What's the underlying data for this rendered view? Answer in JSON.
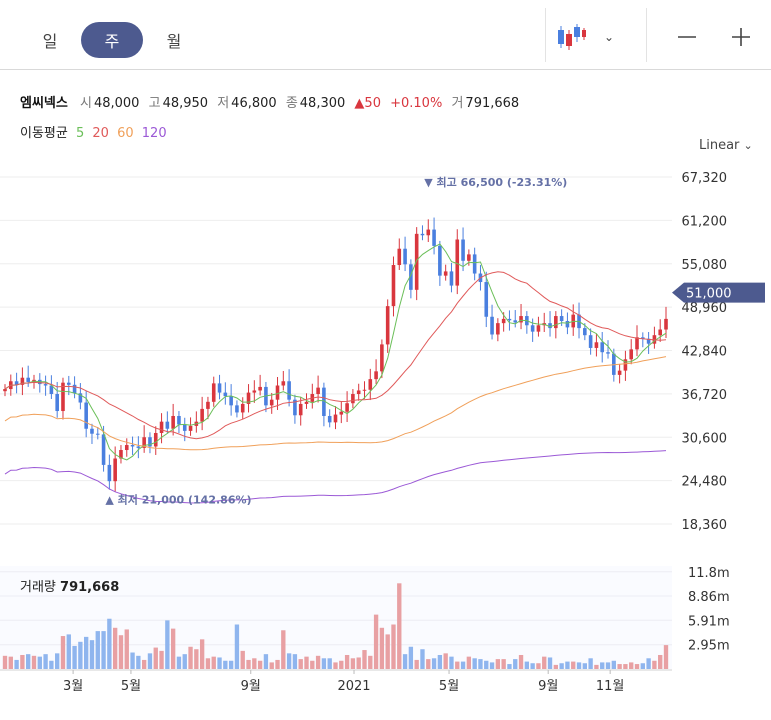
{
  "period_tabs": [
    "일",
    "주",
    "월"
  ],
  "active_period": "주",
  "icons": {
    "chart_type": "candlestick-icon",
    "chart_type_caret": "chevron-down-icon",
    "zoom_out": "minus-icon",
    "zoom_in": "plus-icon"
  },
  "quote": {
    "name": "엠씨넥스",
    "open_label": "시",
    "open": "48,000",
    "high_label": "고",
    "high": "48,950",
    "low_label": "저",
    "low": "46,800",
    "close_label": "종",
    "close": "48,300",
    "change_arrow": "▲",
    "change": "50",
    "change_pct": "+0.10%",
    "volume_label": "거",
    "volume": "791,668"
  },
  "moving_average": {
    "label": "이동평균",
    "periods": [
      {
        "value": "5",
        "color": "#6bbf59"
      },
      {
        "value": "20",
        "color": "#e05a5a"
      },
      {
        "value": "60",
        "color": "#f0a05a"
      },
      {
        "value": "120",
        "color": "#9b59d6"
      }
    ]
  },
  "scale_mode": "Linear",
  "scale_caret": "chevron-down-icon",
  "volume_panel": {
    "label": "거래량",
    "value": "791,668"
  },
  "colors": {
    "up": "#d9363e",
    "down": "#4a7fdf",
    "up_volume": "#e8a0a3",
    "down_volume": "#8fb5ee",
    "accent": "#4d5a8f"
  },
  "chart_data": {
    "type": "candlestick",
    "y_ticks": [
      "67,320",
      "61,200",
      "55,080",
      "48,960",
      "42,840",
      "36,720",
      "30,600",
      "24,480",
      "18,360"
    ],
    "ylim": [
      18360,
      67320
    ],
    "x_ticks": [
      "3월",
      "5월",
      "9월",
      "2021",
      "5월",
      "9월",
      "11월"
    ],
    "current_price_label": "51,000",
    "current_price": 51000,
    "max_annotation": {
      "prefix": "▼",
      "text": "최고 66,500 (-23.31%)",
      "value": 66500
    },
    "min_annotation": {
      "prefix": "▲",
      "text": "최저 21,000 (142.86%)",
      "value": 21000
    },
    "volume_ticks": [
      "11.8m",
      "8.86m",
      "5.91m",
      "2.95m"
    ],
    "volume_tick_values": [
      11800000,
      8860000,
      5910000,
      2950000
    ],
    "closes": [
      37400,
      38500,
      38000,
      39000,
      38400,
      38700,
      38100,
      37900,
      36700,
      34300,
      38300,
      38000,
      36800,
      35500,
      31800,
      31100,
      31000,
      26700,
      24400,
      27600,
      28800,
      29500,
      29300,
      29100,
      30600,
      29300,
      31200,
      32800,
      31800,
      33600,
      32400,
      31500,
      32200,
      32800,
      34600,
      35600,
      38200,
      36900,
      36400,
      35100,
      34100,
      35300,
      36900,
      37200,
      37700,
      35100,
      35900,
      37900,
      38500,
      35900,
      33700,
      35300,
      35600,
      36700,
      37600,
      33600,
      32700,
      33800,
      34200,
      35400,
      36700,
      37200,
      37300,
      38800,
      39900,
      43700,
      49100,
      54900,
      57200,
      55000,
      51400,
      59300,
      59100,
      59900,
      57600,
      53400,
      54000,
      52000,
      58500,
      55500,
      56400,
      53700,
      52500,
      47600,
      45100,
      46700,
      47300,
      47100,
      46800,
      47700,
      46400,
      45500,
      46400,
      46700,
      46000,
      47700,
      47000,
      46100,
      47900,
      46000,
      45000,
      43200,
      44000,
      42600,
      42400,
      39400,
      40000,
      41600,
      43000,
      44700,
      44500,
      43800,
      45000,
      45800,
      47300
    ],
    "volumes": [
      1.6,
      1.5,
      1.1,
      1.7,
      1.8,
      1.6,
      1.5,
      1.8,
      1.0,
      1.9,
      4.0,
      4.2,
      2.8,
      3.3,
      3.9,
      3.5,
      4.6,
      4.6,
      6.1,
      5.0,
      4.1,
      4.8,
      2.0,
      1.6,
      1.1,
      1.9,
      2.6,
      2.2,
      5.9,
      4.9,
      1.5,
      1.8,
      2.7,
      2.4,
      3.6,
      1.3,
      1.5,
      1.4,
      1.0,
      1.0,
      5.4,
      2.2,
      1.1,
      1.3,
      1.0,
      1.8,
      0.8,
      1.1,
      4.7,
      1.9,
      1.8,
      1.2,
      1.5,
      1.0,
      1.6,
      1.3,
      1.3,
      0.8,
      1.0,
      1.7,
      1.3,
      1.4,
      2.3,
      1.6,
      6.6,
      5.0,
      4.2,
      5.4,
      10.4,
      1.8,
      2.7,
      1.1,
      2.4,
      1.2,
      1.3,
      1.7,
      1.9,
      1.5,
      0.9,
      0.9,
      1.5,
      1.3,
      1.2,
      1.0,
      0.8,
      1.2,
      1.2,
      0.6,
      1.2,
      1.7,
      0.9,
      0.7,
      0.7,
      1.5,
      1.4,
      0.5,
      0.7,
      0.9,
      0.9,
      0.8,
      0.7,
      1.3,
      0.5,
      0.8,
      0.8,
      1.0,
      0.6,
      0.6,
      0.8,
      0.6,
      0.7,
      1.3,
      1.0,
      1.7,
      2.9
    ]
  }
}
